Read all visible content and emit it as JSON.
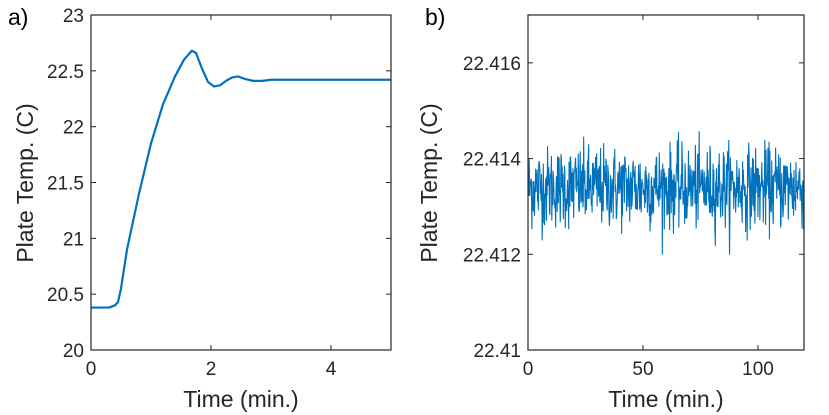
{
  "chart_data": [
    {
      "panel_label": "a)",
      "type": "line",
      "xlabel": "Time (min.)",
      "ylabel": "Plate Temp. (C)",
      "xlim": [
        0,
        5
      ],
      "ylim": [
        20,
        23
      ],
      "xticks": [
        0,
        2,
        4
      ],
      "xtick_labels": [
        "0",
        "2",
        "4"
      ],
      "yticks": [
        20,
        20.5,
        21,
        21.5,
        22,
        22.5,
        23
      ],
      "ytick_labels": [
        "20",
        "20.5",
        "21",
        "21.5",
        "22",
        "22.5",
        "23"
      ],
      "grid": false,
      "legend": "none",
      "series": [
        {
          "color": "#0072BD",
          "x": [
            0,
            0.15,
            0.3,
            0.4,
            0.45,
            0.5,
            0.6,
            0.8,
            1.0,
            1.2,
            1.4,
            1.55,
            1.68,
            1.75,
            1.85,
            1.95,
            2.05,
            2.15,
            2.25,
            2.35,
            2.45,
            2.55,
            2.7,
            2.85,
            3.0,
            3.5,
            4.0,
            4.5,
            5.0
          ],
          "y": [
            20.38,
            20.38,
            20.38,
            20.4,
            20.43,
            20.55,
            20.9,
            21.4,
            21.85,
            22.2,
            22.45,
            22.6,
            22.68,
            22.66,
            22.52,
            22.4,
            22.36,
            22.37,
            22.41,
            22.44,
            22.45,
            22.43,
            22.41,
            22.41,
            22.42,
            22.42,
            22.42,
            22.42,
            22.42
          ]
        }
      ]
    },
    {
      "panel_label": "b)",
      "type": "line",
      "xlabel": "Time (min.)",
      "ylabel": "Plate Temp. (C)",
      "xlim": [
        0,
        120
      ],
      "ylim": [
        22.41,
        22.417
      ],
      "xticks": [
        0,
        50,
        100
      ],
      "xtick_labels": [
        "0",
        "50",
        "100"
      ],
      "yticks": [
        22.41,
        22.412,
        22.414,
        22.416
      ],
      "ytick_labels": [
        "22.41",
        "22.412",
        "22.414",
        "22.416"
      ],
      "grid": false,
      "legend": "none",
      "series": [
        {
          "color": "#0072BD",
          "mean": 22.4134,
          "noise_std": 0.00042,
          "samples": 720,
          "min": 22.412,
          "max": 22.415
        }
      ]
    }
  ]
}
